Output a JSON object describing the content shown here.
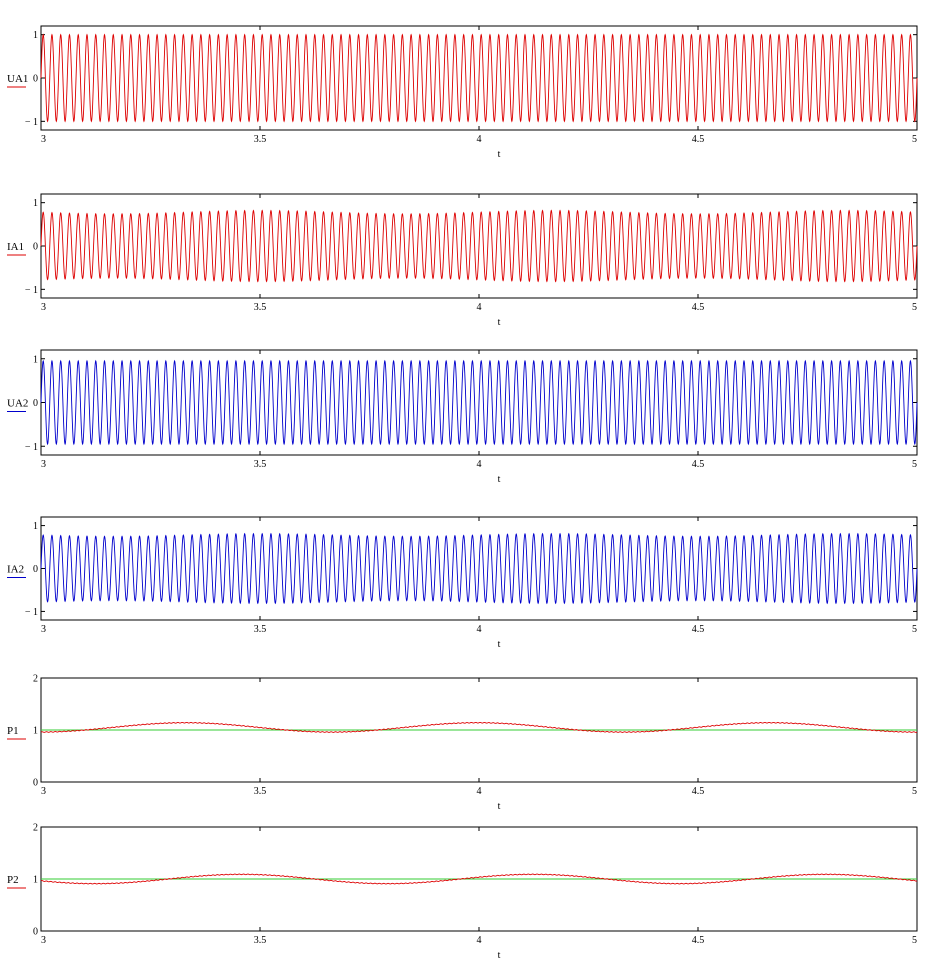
{
  "chart_data": [
    {
      "type": "line",
      "id": "UA1",
      "xlabel": "t",
      "ylabel": "UA1",
      "xlim": [
        3,
        5
      ],
      "ylim": [
        -1.2,
        1.2
      ],
      "xticks": [
        3,
        3.5,
        4,
        4.5,
        5
      ],
      "xtick_labels": [
        "3",
        "3.5",
        "4",
        "4.5",
        "5"
      ],
      "yticks": [
        -1,
        0,
        1
      ],
      "ytick_labels": [
        "− 1",
        "0",
        "1"
      ],
      "color": "#dd0000",
      "signal": {
        "kind": "sine",
        "amplitude": 1.0,
        "frequency_hz": 50,
        "amplitude_modulation": 0.0,
        "modulation_hz": 0
      }
    },
    {
      "type": "line",
      "id": "IA1",
      "xlabel": "t",
      "ylabel": "IA1",
      "xlim": [
        3,
        5
      ],
      "ylim": [
        -1.2,
        1.2
      ],
      "xticks": [
        3,
        3.5,
        4,
        4.5,
        5
      ],
      "xtick_labels": [
        "3",
        "3.5",
        "4",
        "4.5",
        "5"
      ],
      "yticks": [
        -1,
        0,
        1
      ],
      "ytick_labels": [
        "− 1",
        "0",
        "1"
      ],
      "color": "#dd0000",
      "signal": {
        "kind": "sine",
        "amplitude": 0.78,
        "frequency_hz": 50,
        "amplitude_modulation": 0.05,
        "modulation_hz": 1.5
      }
    },
    {
      "type": "line",
      "id": "UA2",
      "xlabel": "t",
      "ylabel": "UA2",
      "xlim": [
        3,
        5
      ],
      "ylim": [
        -1.2,
        1.2
      ],
      "xticks": [
        3,
        3.5,
        4,
        4.5,
        5
      ],
      "xtick_labels": [
        "3",
        "3.5",
        "4",
        "4.5",
        "5"
      ],
      "yticks": [
        -1,
        0,
        1
      ],
      "ytick_labels": [
        "− 1",
        "0",
        "1"
      ],
      "color": "#0000cc",
      "signal": {
        "kind": "sine",
        "amplitude": 0.95,
        "frequency_hz": 50,
        "amplitude_modulation": 0.0,
        "modulation_hz": 0
      }
    },
    {
      "type": "line",
      "id": "IA2",
      "xlabel": "t",
      "ylabel": "IA2",
      "xlim": [
        3,
        5
      ],
      "ylim": [
        -1.2,
        1.2
      ],
      "xticks": [
        3,
        3.5,
        4,
        4.5,
        5
      ],
      "xtick_labels": [
        "3",
        "3.5",
        "4",
        "4.5",
        "5"
      ],
      "yticks": [
        -1,
        0,
        1
      ],
      "ytick_labels": [
        "− 1",
        "0",
        "1"
      ],
      "color": "#0000cc",
      "signal": {
        "kind": "sine",
        "amplitude": 0.78,
        "frequency_hz": 50,
        "amplitude_modulation": 0.04,
        "modulation_hz": 1.5
      }
    },
    {
      "type": "line",
      "id": "P1",
      "xlabel": "t",
      "ylabel": "P1",
      "xlim": [
        3,
        5
      ],
      "ylim": [
        0,
        2
      ],
      "xticks": [
        3,
        3.5,
        4,
        4.5,
        5
      ],
      "xtick_labels": [
        "3",
        "3.5",
        "4",
        "4.5",
        "5"
      ],
      "yticks": [
        0,
        1,
        2
      ],
      "ytick_labels": [
        "0",
        "1",
        "2"
      ],
      "color": "#dd0000",
      "reference_line": {
        "y": 1,
        "color": "#33cc33"
      },
      "signal": {
        "kind": "power",
        "mean": 1.05,
        "ripple": 0.09,
        "ripple_hz": 1.5,
        "phase": 1.6
      }
    },
    {
      "type": "line",
      "id": "P2",
      "xlabel": "t",
      "ylabel": "P2",
      "xlim": [
        3,
        5
      ],
      "ylim": [
        0,
        2
      ],
      "xticks": [
        3,
        3.5,
        4,
        4.5,
        5
      ],
      "xtick_labels": [
        "3",
        "3.5",
        "4",
        "4.5",
        "5"
      ],
      "yticks": [
        0,
        1,
        2
      ],
      "ytick_labels": [
        "0",
        "1",
        "2"
      ],
      "color": "#dd0000",
      "reference_line": {
        "y": 1,
        "color": "#33cc33"
      },
      "signal": {
        "kind": "power",
        "mean": 1.0,
        "ripple": 0.09,
        "ripple_hz": 1.5,
        "phase": 0.4
      }
    }
  ]
}
